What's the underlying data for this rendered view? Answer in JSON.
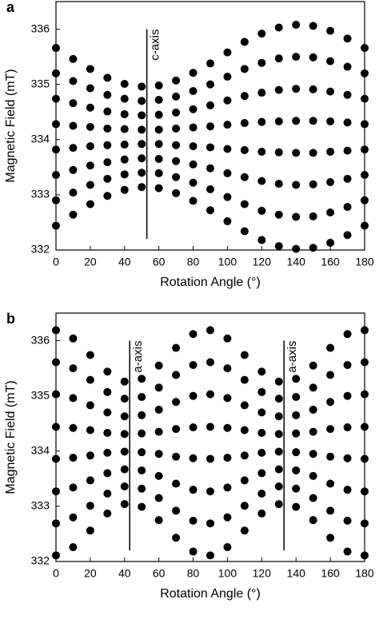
{
  "chart_data": [
    {
      "type": "scatter",
      "label": "a",
      "x_label": "Rotation Angle (°)",
      "y_label": "Magnetic Field (mT)",
      "x": [
        0,
        10,
        20,
        30,
        40,
        50,
        60,
        70,
        80,
        90,
        100,
        110,
        120,
        130,
        140,
        150,
        160,
        170,
        180
      ],
      "xlim": [
        0,
        180
      ],
      "xticks": [
        0,
        20,
        40,
        60,
        80,
        100,
        120,
        140,
        160,
        180
      ],
      "ylim": [
        332,
        336.5
      ],
      "yticks": [
        332,
        333,
        334,
        335,
        336
      ],
      "series": [
        {
          "color": "#000000",
          "values": [
            335.66,
            335.46,
            335.28,
            335.12,
            335.01,
            334.96,
            334.98,
            335.07,
            335.21,
            335.38,
            335.58,
            335.77,
            335.92,
            336.03,
            336.08,
            336.06,
            335.97,
            335.83,
            335.66
          ]
        },
        {
          "color": "#000000",
          "values": [
            335.2,
            335.06,
            334.93,
            334.81,
            334.74,
            334.7,
            334.72,
            334.78,
            334.88,
            335.0,
            335.14,
            335.28,
            335.39,
            335.47,
            335.5,
            335.49,
            335.42,
            335.32,
            335.2
          ]
        },
        {
          "color": "#000000",
          "values": [
            334.74,
            334.66,
            334.58,
            334.51,
            334.46,
            334.44,
            334.45,
            334.49,
            334.55,
            334.62,
            334.71,
            334.79,
            334.85,
            334.9,
            334.92,
            334.91,
            334.87,
            334.81,
            334.74
          ]
        },
        {
          "color": "#000000",
          "values": [
            334.28,
            334.25,
            334.23,
            334.2,
            334.19,
            334.18,
            334.18,
            334.2,
            334.22,
            334.24,
            334.27,
            334.3,
            334.32,
            334.33,
            334.34,
            334.34,
            334.33,
            334.31,
            334.28
          ]
        },
        {
          "color": "#000000",
          "values": [
            333.82,
            333.85,
            333.88,
            333.9,
            333.91,
            333.92,
            333.92,
            333.9,
            333.88,
            333.86,
            333.83,
            333.81,
            333.78,
            333.77,
            333.76,
            333.76,
            333.78,
            333.8,
            333.82
          ]
        },
        {
          "color": "#000000",
          "values": [
            333.36,
            333.45,
            333.53,
            333.59,
            333.64,
            333.66,
            333.65,
            333.61,
            333.55,
            333.48,
            333.39,
            333.32,
            333.25,
            333.2,
            333.18,
            333.19,
            333.23,
            333.29,
            333.36
          ]
        },
        {
          "color": "#000000",
          "values": [
            332.9,
            333.04,
            333.18,
            333.29,
            333.37,
            333.4,
            333.39,
            333.32,
            333.22,
            333.1,
            332.96,
            332.83,
            332.71,
            332.64,
            332.6,
            332.61,
            332.68,
            332.78,
            332.9
          ]
        },
        {
          "color": "#000000",
          "values": [
            332.44,
            332.64,
            332.83,
            332.98,
            333.09,
            333.14,
            333.12,
            333.03,
            332.89,
            332.72,
            332.52,
            332.34,
            332.18,
            332.07,
            332.02,
            332.04,
            332.13,
            332.27,
            332.44
          ]
        }
      ],
      "annotations": [
        {
          "text": "c-axis",
          "x": 53,
          "y": [
            332.2,
            336
          ]
        }
      ]
    },
    {
      "type": "scatter",
      "label": "b",
      "x_label": "Rotation Angle (°)",
      "y_label": "Magnetic Field (mT)",
      "x": [
        0,
        10,
        20,
        30,
        40,
        50,
        60,
        70,
        80,
        90,
        100,
        110,
        120,
        130,
        140,
        150,
        160,
        170,
        180
      ],
      "xlim": [
        0,
        180
      ],
      "xticks": [
        0,
        20,
        40,
        60,
        80,
        100,
        120,
        140,
        160,
        180
      ],
      "ylim": [
        332,
        336.5
      ],
      "yticks": [
        332,
        333,
        334,
        335,
        336
      ],
      "series": [
        {
          "color": "#000000",
          "values": [
            336.19,
            336.04,
            335.74,
            335.44,
            335.26,
            335.31,
            335.55,
            335.87,
            336.12,
            336.19,
            336.04,
            335.74,
            335.44,
            335.26,
            335.31,
            335.55,
            335.87,
            336.12,
            336.19
          ]
        },
        {
          "color": "#000000",
          "values": [
            335.61,
            335.5,
            335.29,
            335.07,
            334.95,
            334.98,
            335.15,
            335.38,
            335.56,
            335.61,
            335.5,
            335.29,
            335.07,
            334.95,
            334.98,
            335.15,
            335.38,
            335.56,
            335.61
          ]
        },
        {
          "color": "#000000",
          "values": [
            335.03,
            334.96,
            334.83,
            334.7,
            334.63,
            334.65,
            334.75,
            334.89,
            335.0,
            335.03,
            334.96,
            334.83,
            334.7,
            334.63,
            334.65,
            334.75,
            334.89,
            335.0,
            335.03
          ]
        },
        {
          "color": "#000000",
          "values": [
            334.44,
            334.42,
            334.38,
            334.33,
            334.31,
            334.32,
            334.35,
            334.4,
            334.43,
            334.44,
            334.42,
            334.38,
            334.33,
            334.31,
            334.32,
            334.35,
            334.4,
            334.43,
            334.44
          ]
        },
        {
          "color": "#000000",
          "values": [
            333.86,
            333.88,
            333.92,
            333.97,
            333.99,
            333.98,
            333.95,
            333.9,
            333.87,
            333.86,
            333.88,
            333.92,
            333.97,
            333.99,
            333.98,
            333.95,
            333.9,
            333.87,
            333.86
          ]
        },
        {
          "color": "#000000",
          "values": [
            333.27,
            333.34,
            333.47,
            333.6,
            333.67,
            333.65,
            333.55,
            333.41,
            333.3,
            333.27,
            333.34,
            333.47,
            333.6,
            333.67,
            333.65,
            333.55,
            333.41,
            333.3,
            333.27
          ]
        },
        {
          "color": "#000000",
          "values": [
            332.69,
            332.8,
            333.01,
            333.23,
            333.36,
            333.32,
            333.15,
            332.92,
            332.74,
            332.69,
            332.8,
            333.01,
            333.23,
            333.36,
            333.32,
            333.15,
            332.92,
            332.74,
            332.69
          ]
        },
        {
          "color": "#000000",
          "values": [
            332.11,
            332.26,
            332.56,
            332.87,
            333.04,
            332.99,
            332.75,
            332.43,
            332.18,
            332.11,
            332.26,
            332.56,
            332.87,
            333.04,
            332.99,
            332.75,
            332.43,
            332.18,
            332.11
          ]
        }
      ],
      "annotations": [
        {
          "text": "a-axis",
          "x": 43,
          "y": [
            332.2,
            336
          ]
        },
        {
          "text": "a-axis",
          "x": 133,
          "y": [
            332.2,
            336
          ]
        }
      ]
    }
  ]
}
